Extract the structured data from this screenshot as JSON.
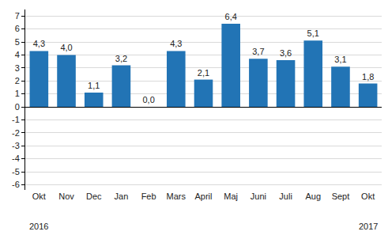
{
  "chart_data": {
    "type": "bar",
    "categories": [
      "Okt",
      "Nov",
      "Dec",
      "Jan",
      "Feb",
      "Mars",
      "April",
      "Maj",
      "Juni",
      "Juli",
      "Aug",
      "Sept",
      "Okt"
    ],
    "values": [
      4.3,
      4.0,
      1.1,
      3.2,
      0.0,
      4.3,
      2.1,
      6.4,
      3.7,
      3.6,
      5.1,
      3.1,
      1.8
    ],
    "value_labels": [
      "4,3",
      "4,0",
      "1,1",
      "3,2",
      "0,0",
      "4,3",
      "2,1",
      "6,4",
      "3,7",
      "3,6",
      "5,1",
      "3,1",
      "1,8"
    ],
    "color": "#2274b5",
    "ylim": [
      -6.4,
      7.5
    ],
    "yticks": [
      -6,
      -5,
      -4,
      -3,
      -2,
      -1,
      0,
      1,
      2,
      3,
      4,
      5,
      6,
      7
    ],
    "grid": true,
    "data_labels": true,
    "annotations": [
      {
        "text": "2016",
        "x": 0
      },
      {
        "text": "2017",
        "x": 12
      }
    ]
  }
}
